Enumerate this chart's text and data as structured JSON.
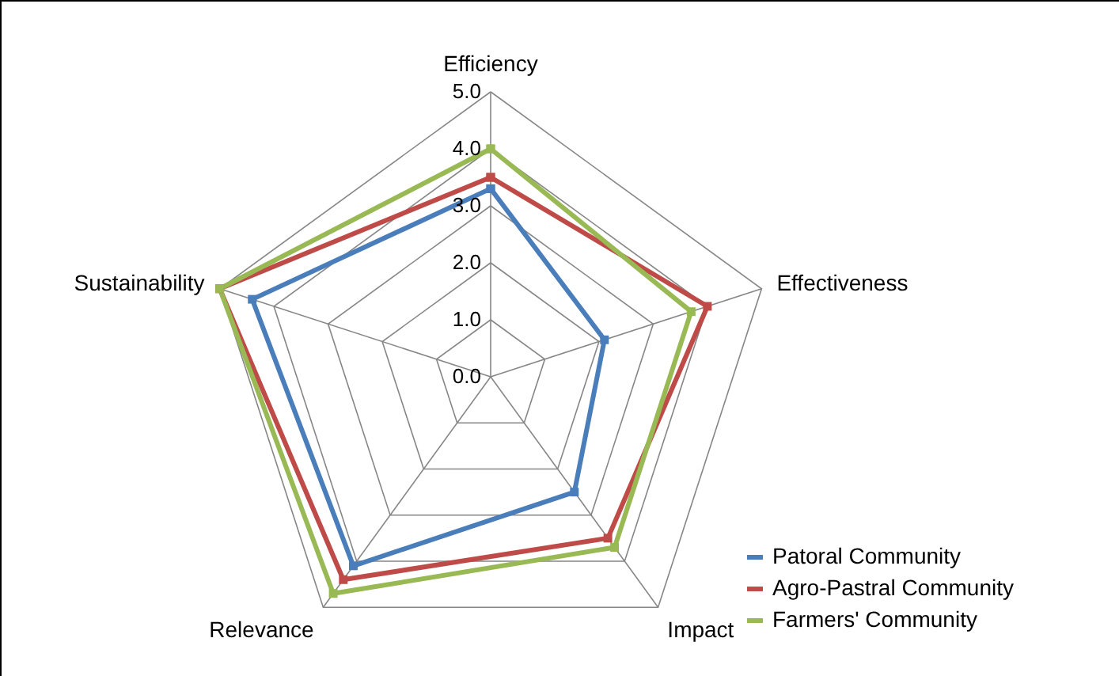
{
  "chart_data": {
    "type": "radar",
    "categories": [
      "Efficiency",
      "Effectiveness",
      "Impact",
      "Relevance",
      "Sustainability"
    ],
    "ylim": [
      0,
      5
    ],
    "yticks": [
      {
        "value": 0,
        "label": "0.0"
      },
      {
        "value": 1,
        "label": "1.0"
      },
      {
        "value": 2,
        "label": "2.0"
      },
      {
        "value": 3,
        "label": "3.0"
      },
      {
        "value": 4,
        "label": "4.0"
      },
      {
        "value": 5,
        "label": "5.0"
      }
    ],
    "series": [
      {
        "name": "Patoral Community",
        "color": "#4a7ebb",
        "values": [
          3.3,
          2.1,
          2.5,
          4.1,
          4.4
        ]
      },
      {
        "name": "Agro-Pastral Community",
        "color": "#be4b48",
        "values": [
          3.5,
          4.0,
          3.5,
          4.4,
          5.0
        ]
      },
      {
        "name": "Farmers' Community",
        "color": "#98b954",
        "values": [
          4.0,
          3.7,
          3.7,
          4.7,
          5.0
        ]
      }
    ],
    "marker": "square",
    "legend": "bottom right",
    "grid": true
  }
}
